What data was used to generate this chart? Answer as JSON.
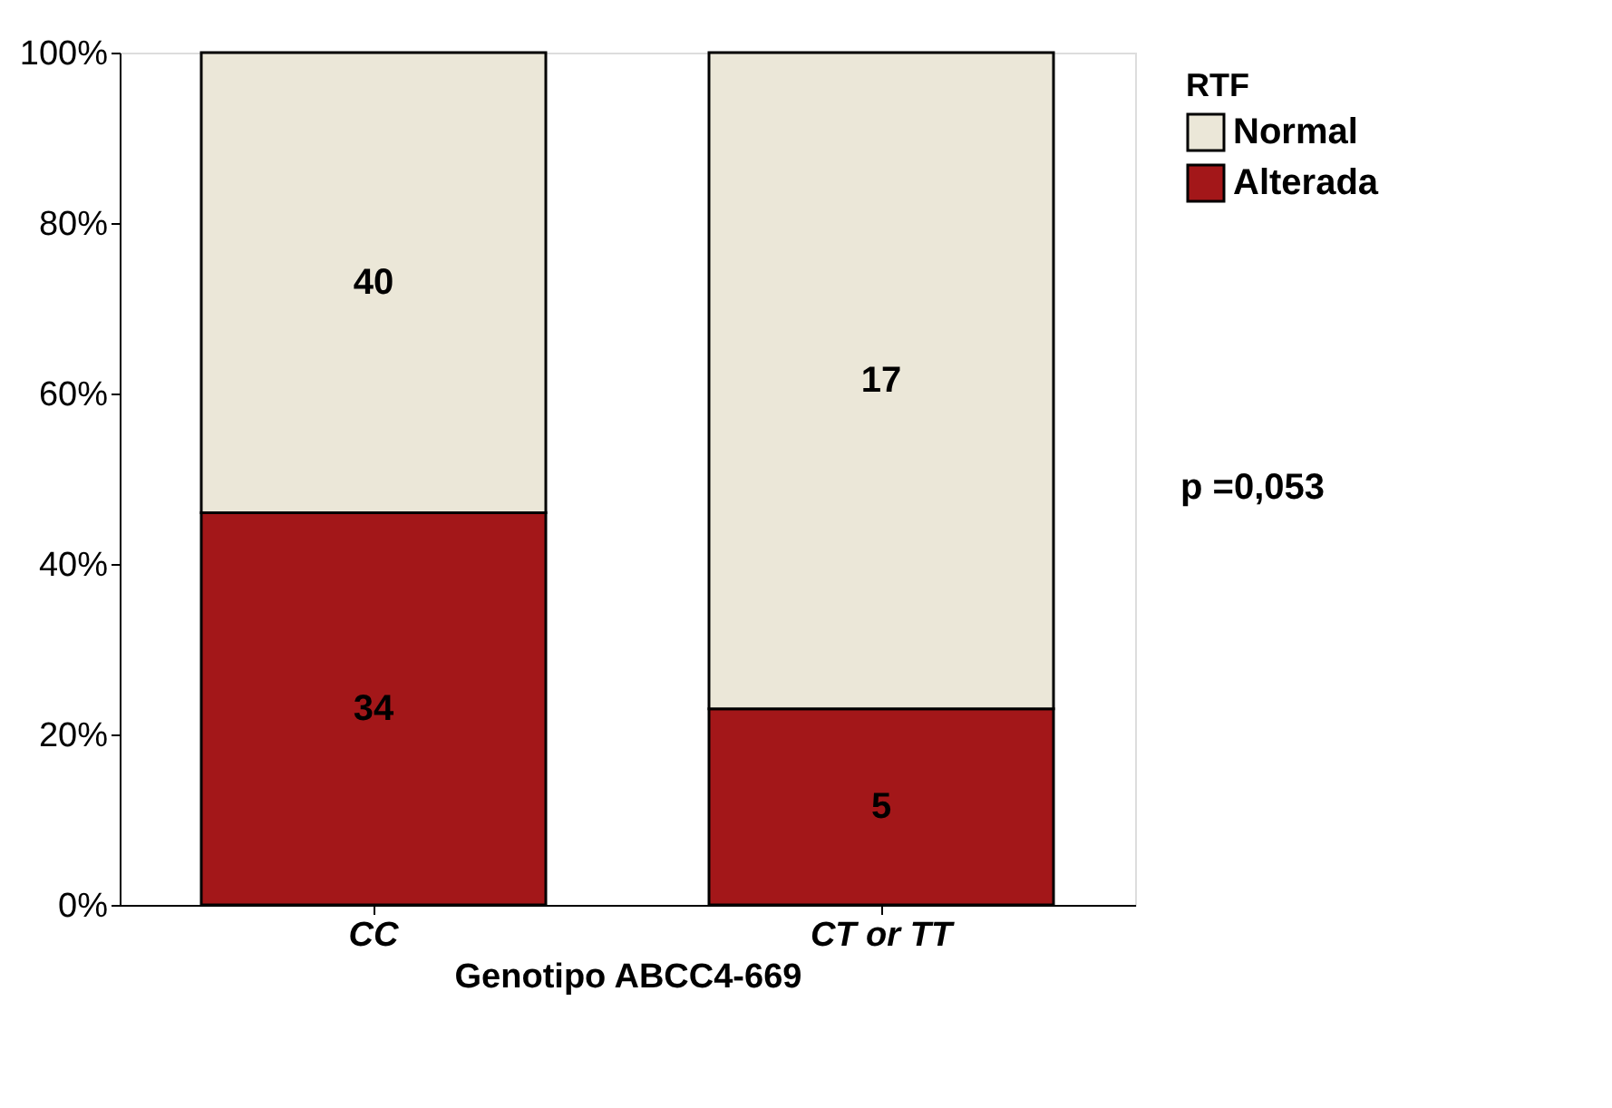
{
  "chart_data": {
    "type": "bar",
    "stacked": true,
    "xlabel": "Genotipo ABCC4-669",
    "legend_title": "RTF",
    "categories": [
      "CC",
      "CT or TT"
    ],
    "series": [
      {
        "name": "Alterada",
        "color": "#a31719",
        "values": [
          46,
          23
        ]
      },
      {
        "name": "Normal",
        "color": "#ebe7d8",
        "values": [
          54,
          77
        ]
      }
    ],
    "ylim": [
      0,
      100
    ],
    "yticks": [
      {
        "value": 0,
        "label": "0%"
      },
      {
        "value": 20,
        "label": "20%"
      },
      {
        "value": 40,
        "label": "40%"
      },
      {
        "value": 60,
        "label": "60%"
      },
      {
        "value": 80,
        "label": "80%"
      },
      {
        "value": 100,
        "label": "100%"
      }
    ],
    "grid": false,
    "legend": "top right",
    "annotations": [
      "34",
      "5",
      "40",
      "17",
      "p =0,053"
    ]
  }
}
